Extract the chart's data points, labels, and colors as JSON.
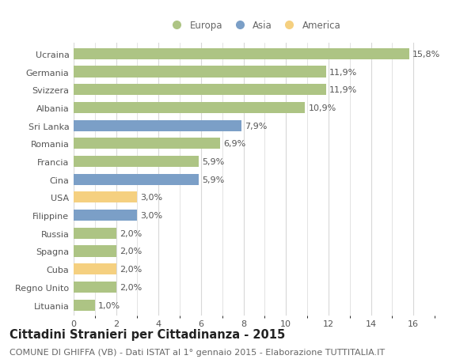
{
  "countries": [
    "Ucraina",
    "Germania",
    "Svizzera",
    "Albania",
    "Sri Lanka",
    "Romania",
    "Francia",
    "Cina",
    "USA",
    "Filippine",
    "Russia",
    "Spagna",
    "Cuba",
    "Regno Unito",
    "Lituania"
  ],
  "values": [
    15.8,
    11.9,
    11.9,
    10.9,
    7.9,
    6.9,
    5.9,
    5.9,
    3.0,
    3.0,
    2.0,
    2.0,
    2.0,
    2.0,
    1.0
  ],
  "labels": [
    "15,8%",
    "11,9%",
    "11,9%",
    "10,9%",
    "7,9%",
    "6,9%",
    "5,9%",
    "5,9%",
    "3,0%",
    "3,0%",
    "2,0%",
    "2,0%",
    "2,0%",
    "2,0%",
    "1,0%"
  ],
  "continents": [
    "Europa",
    "Europa",
    "Europa",
    "Europa",
    "Asia",
    "Europa",
    "Europa",
    "Asia",
    "America",
    "Asia",
    "Europa",
    "Europa",
    "America",
    "Europa",
    "Europa"
  ],
  "colors": {
    "Europa": "#adc484",
    "Asia": "#7b9fc7",
    "America": "#f5d080"
  },
  "background_color": "#ffffff",
  "grid_color": "#d8d8d8",
  "xlim": [
    0,
    17
  ],
  "xticks": [
    0,
    2,
    4,
    6,
    8,
    10,
    12,
    14,
    16
  ],
  "title": "Cittadini Stranieri per Cittadinanza - 2015",
  "subtitle": "COMUNE DI GHIFFA (VB) - Dati ISTAT al 1° gennaio 2015 - Elaborazione TUTTITALIA.IT",
  "legend_labels": [
    "Europa",
    "Asia",
    "America"
  ],
  "bar_height": 0.62,
  "title_fontsize": 10.5,
  "subtitle_fontsize": 8,
  "tick_fontsize": 8,
  "label_fontsize": 8,
  "legend_fontsize": 8.5
}
